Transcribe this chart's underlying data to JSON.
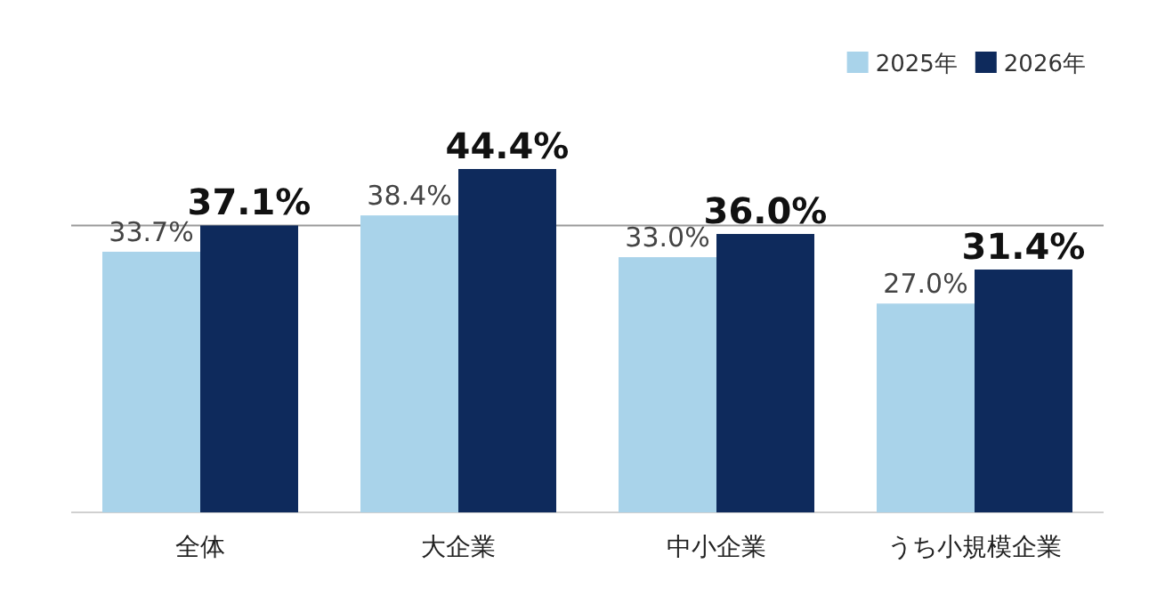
{
  "chart_data": {
    "type": "bar",
    "categories": [
      "全体",
      "大企業",
      "中小企業",
      "うち小規模企業"
    ],
    "series": [
      {
        "name": "2025年",
        "color": "#a9d3ea",
        "values": [
          33.7,
          38.4,
          33.0,
          27.0
        ],
        "value_labels": [
          "33.7%",
          "38.4%",
          "33.0%",
          "27.0%"
        ]
      },
      {
        "name": "2026年",
        "color": "#0e2a5c",
        "values": [
          37.1,
          44.4,
          36.0,
          31.4
        ],
        "value_labels": [
          "37.1%",
          "44.4%",
          "36.0%",
          "31.4%"
        ]
      }
    ],
    "ref_lines": [
      {
        "axis": "y",
        "value": 37.1,
        "color": "#9a9a9a"
      }
    ],
    "legend": "top right"
  }
}
